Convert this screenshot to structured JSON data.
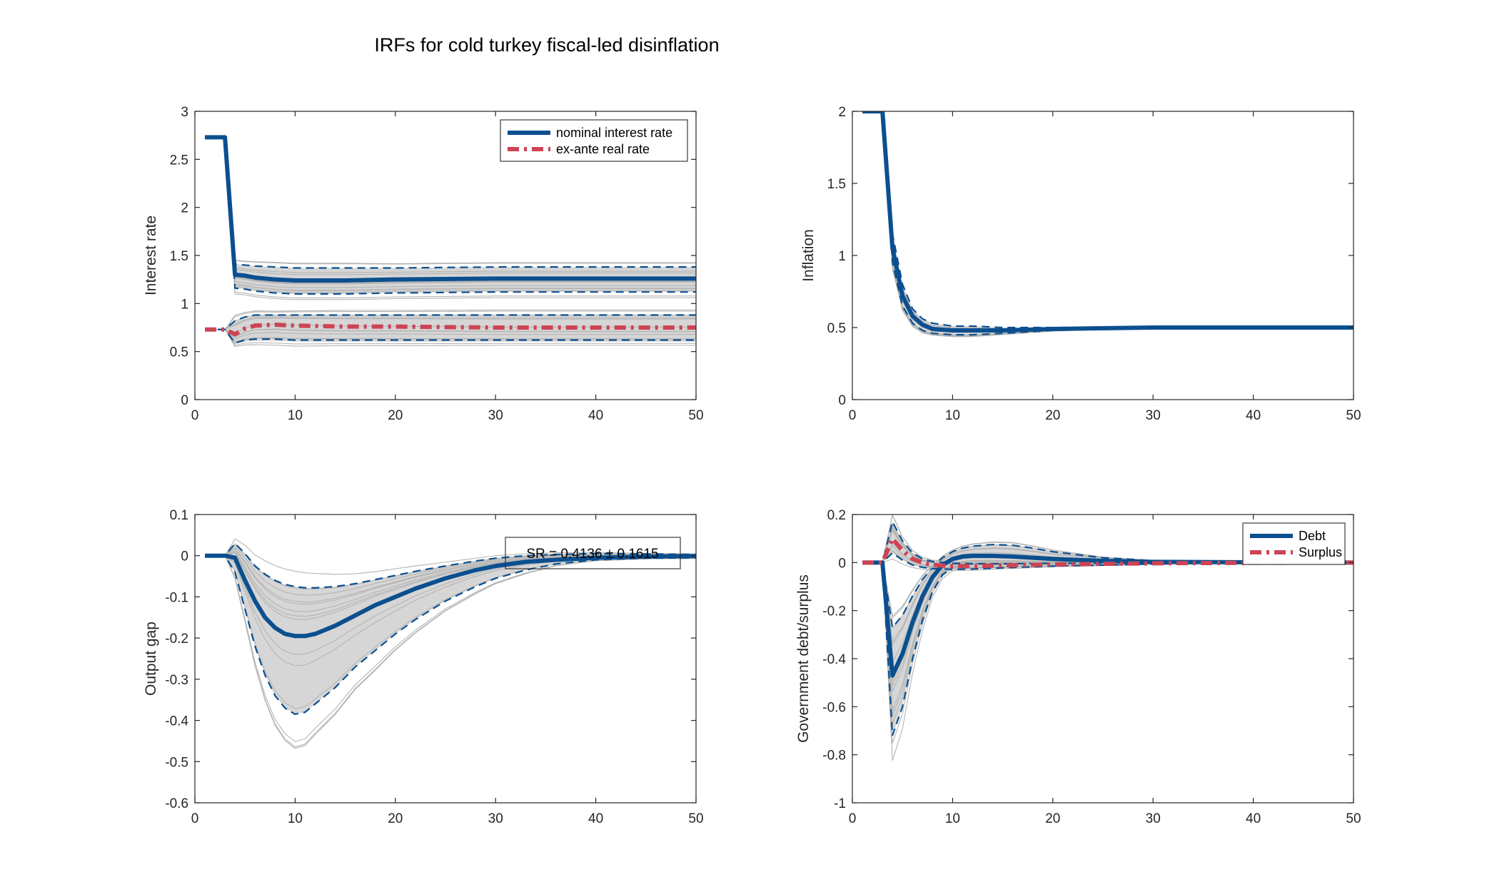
{
  "figure_title": "IRFs for cold turkey fiscal-led disinflation",
  "colors": {
    "blue": "#0b4f8f",
    "red": "#cc4455",
    "band": "#c8c8c8",
    "draw": "#b4b4b4",
    "axis": "#262626"
  },
  "chart_data": [
    {
      "type": "line",
      "ylabel": "Interest rate",
      "xlim": [
        0,
        50
      ],
      "ylim": [
        0,
        3
      ],
      "xticks": [
        0,
        10,
        20,
        30,
        40,
        50
      ],
      "yticks": [
        0,
        0.5,
        1,
        1.5,
        2,
        2.5,
        3
      ],
      "xtick_labels": [
        "0",
        "10",
        "20",
        "30",
        "40",
        "50"
      ],
      "ytick_labels": [
        "0",
        "0.5",
        "1",
        "1.5",
        "2",
        "2.5",
        "3"
      ],
      "legend": {
        "placement": "top-right",
        "entries": [
          "nominal interest rate",
          "ex-ante real rate"
        ]
      },
      "series": [
        {
          "name": "nominal interest rate",
          "style": "solid-blue",
          "x": [
            1,
            2,
            3,
            4,
            5,
            6,
            8,
            10,
            15,
            20,
            30,
            40,
            50
          ],
          "y": [
            2.73,
            2.73,
            2.73,
            1.3,
            1.29,
            1.27,
            1.25,
            1.24,
            1.24,
            1.25,
            1.26,
            1.26,
            1.26
          ],
          "upper": [
            2.73,
            2.73,
            2.73,
            1.41,
            1.4,
            1.39,
            1.38,
            1.37,
            1.37,
            1.37,
            1.38,
            1.38,
            1.38
          ],
          "lower": [
            2.73,
            2.73,
            2.73,
            1.16,
            1.15,
            1.13,
            1.11,
            1.1,
            1.1,
            1.11,
            1.12,
            1.12,
            1.12
          ]
        },
        {
          "name": "ex-ante real rate",
          "style": "dashdot-red",
          "x": [
            1,
            2,
            3,
            4,
            5,
            6,
            8,
            10,
            15,
            20,
            30,
            40,
            50
          ],
          "y": [
            0.73,
            0.73,
            0.73,
            0.68,
            0.74,
            0.77,
            0.78,
            0.77,
            0.76,
            0.76,
            0.75,
            0.75,
            0.75
          ],
          "upper": [
            0.73,
            0.73,
            0.73,
            0.82,
            0.86,
            0.88,
            0.88,
            0.88,
            0.88,
            0.88,
            0.88,
            0.88,
            0.88
          ],
          "lower": [
            0.73,
            0.73,
            0.73,
            0.59,
            0.62,
            0.63,
            0.63,
            0.62,
            0.62,
            0.62,
            0.62,
            0.62,
            0.62
          ]
        }
      ]
    },
    {
      "type": "line",
      "ylabel": "Inflation",
      "xlim": [
        0,
        50
      ],
      "ylim": [
        0,
        2
      ],
      "xticks": [
        0,
        10,
        20,
        30,
        40,
        50
      ],
      "yticks": [
        0,
        0.5,
        1,
        1.5,
        2
      ],
      "xtick_labels": [
        "0",
        "10",
        "20",
        "30",
        "40",
        "50"
      ],
      "ytick_labels": [
        "0",
        "0.5",
        "1",
        "1.5",
        "2"
      ],
      "series": [
        {
          "style": "solid-blue",
          "x": [
            1,
            2,
            3,
            4,
            5,
            6,
            7,
            8,
            10,
            12,
            15,
            20,
            30,
            40,
            50
          ],
          "y": [
            2,
            2,
            2,
            1.05,
            0.72,
            0.58,
            0.52,
            0.49,
            0.48,
            0.48,
            0.48,
            0.49,
            0.5,
            0.5,
            0.5
          ],
          "upper": [
            2,
            2,
            2,
            1.15,
            0.8,
            0.63,
            0.56,
            0.53,
            0.51,
            0.51,
            0.5,
            0.5,
            0.5,
            0.5,
            0.5
          ],
          "lower": [
            2,
            2,
            2,
            0.95,
            0.65,
            0.53,
            0.48,
            0.46,
            0.45,
            0.45,
            0.46,
            0.48,
            0.5,
            0.5,
            0.5
          ]
        }
      ]
    },
    {
      "type": "line",
      "ylabel": "Output gap",
      "xlim": [
        0,
        50
      ],
      "ylim": [
        -0.6,
        0.1
      ],
      "xticks": [
        0,
        10,
        20,
        30,
        40,
        50
      ],
      "yticks": [
        -0.6,
        -0.5,
        -0.4,
        -0.3,
        -0.2,
        -0.1,
        0,
        0.1
      ],
      "xtick_labels": [
        "0",
        "10",
        "20",
        "30",
        "40",
        "50"
      ],
      "ytick_labels": [
        "-0.6",
        "-0.5",
        "-0.4",
        "-0.3",
        "-0.2",
        "-0.1",
        "0",
        "0.1"
      ],
      "annotation": "SR = 0.4136 ± 0.1615",
      "series": [
        {
          "style": "solid-blue",
          "x": [
            1,
            2,
            3,
            4,
            5,
            6,
            7,
            8,
            9,
            10,
            11,
            12,
            14,
            16,
            18,
            20,
            22,
            25,
            28,
            30,
            33,
            36,
            40,
            45,
            50
          ],
          "y": [
            0,
            0,
            0,
            -0.005,
            -0.06,
            -0.11,
            -0.15,
            -0.175,
            -0.19,
            -0.195,
            -0.195,
            -0.19,
            -0.17,
            -0.145,
            -0.12,
            -0.1,
            -0.08,
            -0.055,
            -0.035,
            -0.025,
            -0.015,
            -0.01,
            -0.005,
            -0.002,
            -0.001
          ],
          "upper": [
            0,
            0,
            0,
            0.03,
            0.005,
            -0.025,
            -0.045,
            -0.06,
            -0.07,
            -0.075,
            -0.078,
            -0.078,
            -0.075,
            -0.068,
            -0.058,
            -0.048,
            -0.038,
            -0.025,
            -0.013,
            -0.006,
            0,
            0.003,
            0.005,
            0.004,
            0.003
          ],
          "lower": [
            0,
            0,
            0,
            -0.04,
            -0.13,
            -0.22,
            -0.29,
            -0.34,
            -0.37,
            -0.385,
            -0.38,
            -0.36,
            -0.32,
            -0.27,
            -0.23,
            -0.19,
            -0.155,
            -0.11,
            -0.075,
            -0.055,
            -0.035,
            -0.02,
            -0.01,
            -0.006,
            -0.005
          ]
        }
      ]
    },
    {
      "type": "line",
      "ylabel": "Government debt/surplus",
      "xlim": [
        0,
        50
      ],
      "ylim": [
        -1,
        0.2
      ],
      "xticks": [
        0,
        10,
        20,
        30,
        40,
        50
      ],
      "yticks": [
        -1,
        -0.8,
        -0.6,
        -0.4,
        -0.2,
        0,
        0.2
      ],
      "xtick_labels": [
        "0",
        "10",
        "20",
        "30",
        "40",
        "50"
      ],
      "ytick_labels": [
        "-1",
        "-0.8",
        "-0.6",
        "-0.4",
        "-0.2",
        "0",
        "0.2"
      ],
      "legend": {
        "placement": "top-right",
        "entries": [
          "Debt",
          "Surplus"
        ]
      },
      "series": [
        {
          "name": "Debt",
          "style": "solid-blue",
          "x": [
            1,
            2,
            3,
            4,
            5,
            6,
            7,
            8,
            9,
            10,
            11,
            12,
            14,
            16,
            18,
            20,
            25,
            30,
            40,
            50
          ],
          "y": [
            0,
            0,
            0,
            -0.47,
            -0.38,
            -0.25,
            -0.14,
            -0.06,
            -0.01,
            0.015,
            0.025,
            0.028,
            0.028,
            0.025,
            0.02,
            0.015,
            0.007,
            0.003,
            0.001,
            0
          ],
          "upper": [
            0,
            0,
            0,
            -0.27,
            -0.22,
            -0.14,
            -0.07,
            -0.02,
            0.02,
            0.045,
            0.06,
            0.068,
            0.075,
            0.072,
            0.06,
            0.045,
            0.02,
            0.008,
            0.003,
            0.001
          ],
          "lower": [
            0,
            0,
            0,
            -0.72,
            -0.6,
            -0.4,
            -0.24,
            -0.12,
            -0.05,
            -0.02,
            -0.01,
            -0.005,
            -0.005,
            -0.005,
            -0.004,
            -0.003,
            -0.002,
            -0.001,
            0,
            0
          ]
        },
        {
          "name": "Surplus",
          "style": "dashdot-red",
          "x": [
            1,
            2,
            3,
            4,
            5,
            6,
            7,
            8,
            10,
            12,
            15,
            20,
            30,
            40,
            50
          ],
          "y": [
            0,
            0,
            0,
            0.1,
            0.05,
            0.015,
            0,
            -0.01,
            -0.015,
            -0.015,
            -0.012,
            -0.008,
            -0.003,
            -0.001,
            0
          ],
          "upper": [
            0,
            0,
            0,
            0.17,
            0.09,
            0.04,
            0.015,
            0.004,
            -0.003,
            -0.005,
            -0.005,
            -0.003,
            -0.001,
            0,
            0
          ],
          "lower": [
            0,
            0,
            0,
            0.04,
            0.01,
            -0.01,
            -0.02,
            -0.025,
            -0.028,
            -0.027,
            -0.022,
            -0.015,
            -0.006,
            -0.002,
            -0.001
          ]
        }
      ]
    }
  ]
}
